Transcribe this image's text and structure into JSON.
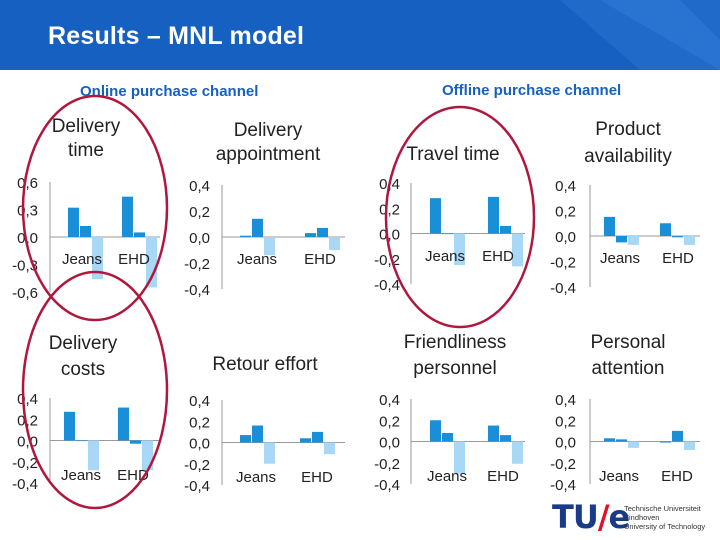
{
  "slide": {
    "title": "Results – MNL model",
    "online_label": "Online purchase channel",
    "offline_label": "Offline purchase channel"
  },
  "colors": {
    "banner": "#1560c0",
    "dark_bar": "#1a8fd8",
    "light_bar": "#a8d8f5",
    "highlight_ellipse": "#b0173c"
  },
  "logo": {
    "mark": "TU/e",
    "line1": "Technische Universiteit",
    "line2": "Eindhoven",
    "line3": "University of Technology"
  },
  "chart_data": [
    {
      "type": "bar",
      "title": "Delivery\ntime",
      "categories": [
        "Jeans",
        "EHD"
      ],
      "ticks": [
        "0,6",
        "0,3",
        "0,0",
        "-0,3",
        "-0,6"
      ],
      "ylim": [
        -0.6,
        0.6
      ],
      "series": [
        {
          "values": [
            0.32,
            0.44
          ]
        },
        {
          "values": [
            0.12,
            0.05
          ]
        },
        {
          "values": [
            -0.46,
            -0.55
          ]
        }
      ],
      "highlighted": true
    },
    {
      "type": "bar",
      "title": "Delivery\nappointment",
      "categories": [
        "Jeans",
        "EHD"
      ],
      "ticks": [
        "0,4",
        "0,2",
        "0,0",
        "-0,2",
        "-0,4"
      ],
      "ylim": [
        -0.4,
        0.4
      ],
      "series": [
        {
          "values": [
            0.01,
            0.03
          ]
        },
        {
          "values": [
            0.14,
            0.07
          ]
        },
        {
          "values": [
            -0.14,
            -0.1
          ]
        }
      ],
      "highlighted": false
    },
    {
      "type": "bar",
      "title": "Travel time",
      "categories": [
        "Jeans",
        "EHD"
      ],
      "ticks": [
        "0,4",
        "0,2",
        "0,0",
        "-0,2",
        "-0,4"
      ],
      "ylim": [
        -0.4,
        0.4
      ],
      "series": [
        {
          "values": [
            0.28,
            0.29
          ]
        },
        {
          "values": [
            0.0,
            0.06
          ]
        },
        {
          "values": [
            -0.25,
            -0.26
          ]
        }
      ],
      "highlighted": true
    },
    {
      "type": "bar",
      "title": "Product\navailability",
      "categories": [
        "Jeans",
        "EHD"
      ],
      "ticks": [
        "0,4",
        "0,2",
        "0,0",
        "-0,2",
        "-0,4"
      ],
      "ylim": [
        -0.4,
        0.4
      ],
      "series": [
        {
          "values": [
            0.15,
            0.1
          ]
        },
        {
          "values": [
            -0.05,
            -0.01
          ]
        },
        {
          "values": [
            -0.07,
            -0.07
          ]
        }
      ],
      "highlighted": false
    },
    {
      "type": "bar",
      "title": "Delivery\ncosts",
      "categories": [
        "Jeans",
        "EHD"
      ],
      "ticks": [
        "0,4",
        "0,2",
        "0,0",
        "-0,2",
        "-0,4"
      ],
      "ylim": [
        -0.4,
        0.4
      ],
      "series": [
        {
          "values": [
            0.27,
            0.31
          ]
        },
        {
          "values": [
            0.0,
            -0.03
          ]
        },
        {
          "values": [
            -0.28,
            -0.28
          ]
        }
      ],
      "highlighted": true
    },
    {
      "type": "bar",
      "title": "Retour effort",
      "categories": [
        "Jeans",
        "EHD"
      ],
      "ticks": [
        "0,4",
        "0,2",
        "0,0",
        "-0,2",
        "-0,4"
      ],
      "ylim": [
        -0.4,
        0.4
      ],
      "series": [
        {
          "values": [
            0.07,
            0.04
          ]
        },
        {
          "values": [
            0.16,
            0.1
          ]
        },
        {
          "values": [
            -0.2,
            -0.11
          ]
        }
      ],
      "highlighted": false
    },
    {
      "type": "bar",
      "title": "Friendliness\npersonnel",
      "categories": [
        "Jeans",
        "EHD"
      ],
      "ticks": [
        "0,4",
        "0,2",
        "0,0",
        "-0,2",
        "-0,4"
      ],
      "ylim": [
        -0.4,
        0.4
      ],
      "series": [
        {
          "values": [
            0.2,
            0.15
          ]
        },
        {
          "values": [
            0.08,
            0.06
          ]
        },
        {
          "values": [
            -0.3,
            -0.21
          ]
        }
      ],
      "highlighted": false
    },
    {
      "type": "bar",
      "title": "Personal\nattention",
      "categories": [
        "Jeans",
        "EHD"
      ],
      "ticks": [
        "0,4",
        "0,2",
        "0,0",
        "-0,2",
        "-0,4"
      ],
      "ylim": [
        -0.4,
        0.4
      ],
      "series": [
        {
          "values": [
            0.03,
            -0.01
          ]
        },
        {
          "values": [
            0.02,
            0.1
          ]
        },
        {
          "values": [
            -0.06,
            -0.08
          ]
        }
      ],
      "highlighted": false
    }
  ]
}
